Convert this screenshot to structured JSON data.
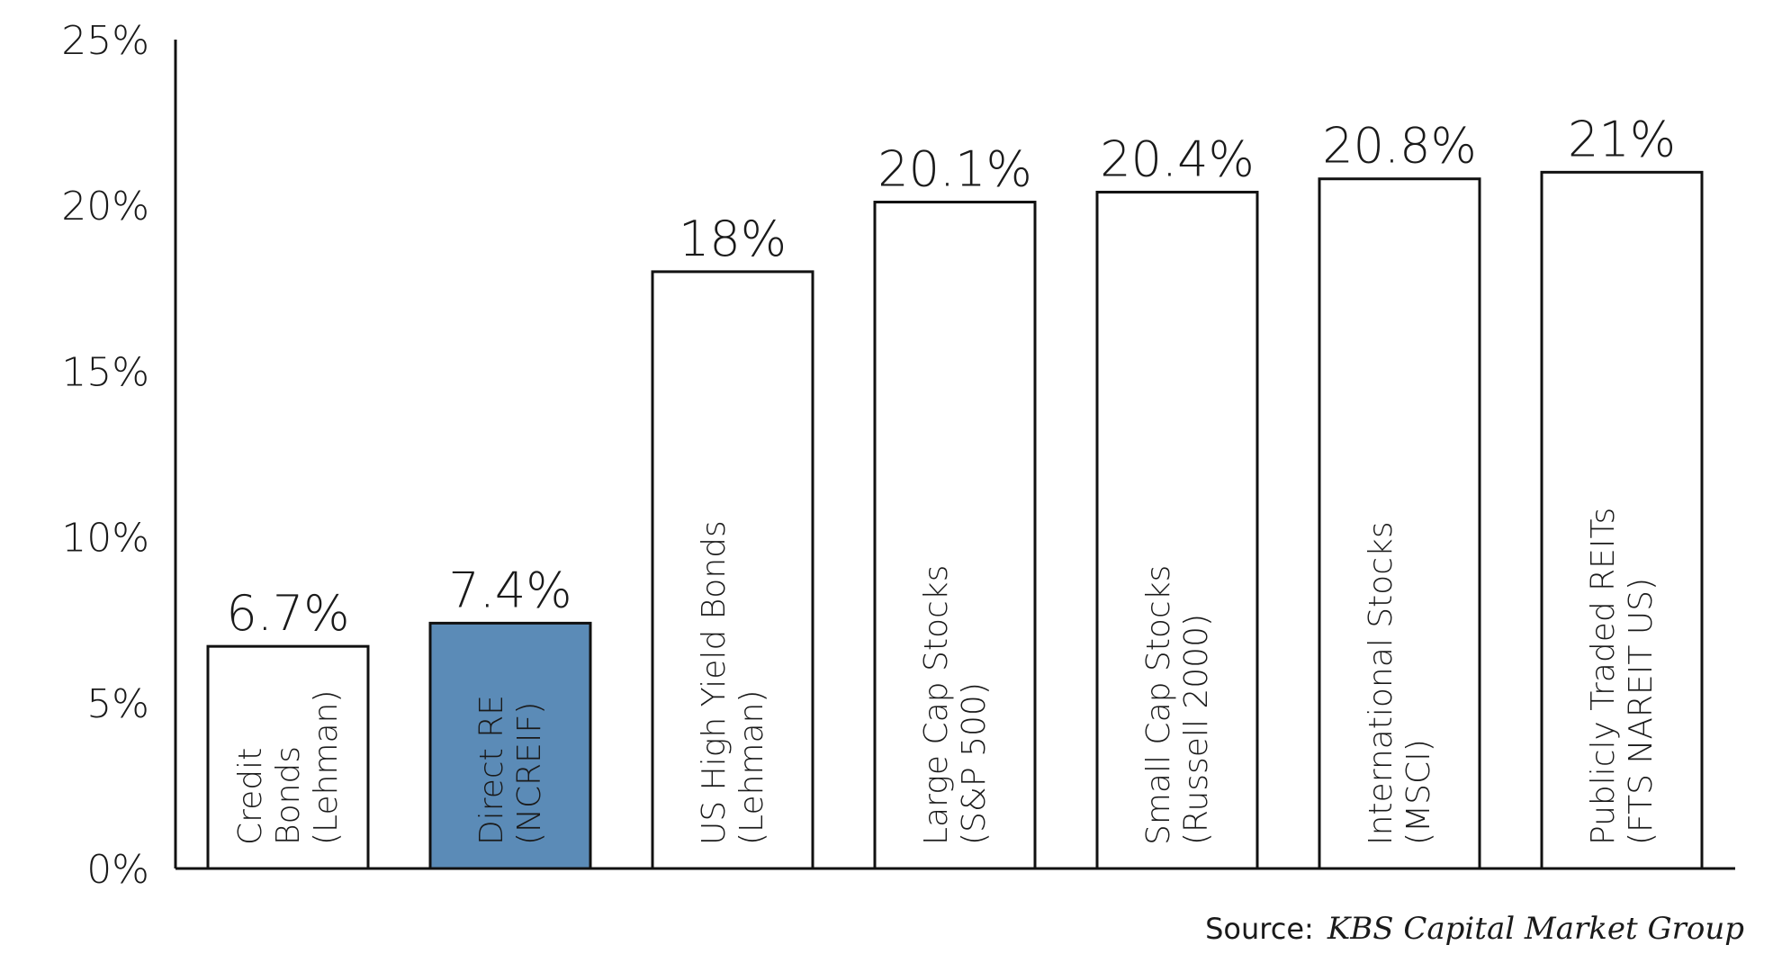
{
  "chart_data": {
    "type": "bar",
    "categories": [
      [
        "Credit",
        "Bonds",
        "(Lehman)"
      ],
      [
        "Direct RE",
        "(NCREIF)"
      ],
      [
        "US High Yield Bonds",
        "(Lehman)"
      ],
      [
        "Large Cap Stocks",
        "(S&P 500)"
      ],
      [
        "Small Cap Stocks",
        "(Russell 2000)"
      ],
      [
        "International Stocks",
        "(MSCI)"
      ],
      [
        "Publicly Traded REITs",
        "(FTS NAREIT US)"
      ]
    ],
    "values": [
      6.7,
      7.4,
      18,
      20.1,
      20.4,
      20.8,
      21
    ],
    "value_labels": [
      "6.7%",
      "7.4%",
      "18%",
      "20.1%",
      "20.4%",
      "20.8%",
      "21%"
    ],
    "highlight_index": 1,
    "y_ticks": [
      0,
      5,
      10,
      15,
      20,
      25
    ],
    "y_tick_labels": [
      "0%",
      "5%",
      "10%",
      "15%",
      "20%",
      "25%"
    ],
    "ylim": [
      0,
      25
    ],
    "title": "",
    "xlabel": "",
    "ylabel": "",
    "grid": false
  },
  "colors": {
    "bar_fill": "#ffffff",
    "bar_highlight": "#5b8bb7",
    "bar_stroke": "#111111",
    "axis": "#111111"
  },
  "source": {
    "prefix": "Source:",
    "name": "KBS Capital Market Group"
  }
}
